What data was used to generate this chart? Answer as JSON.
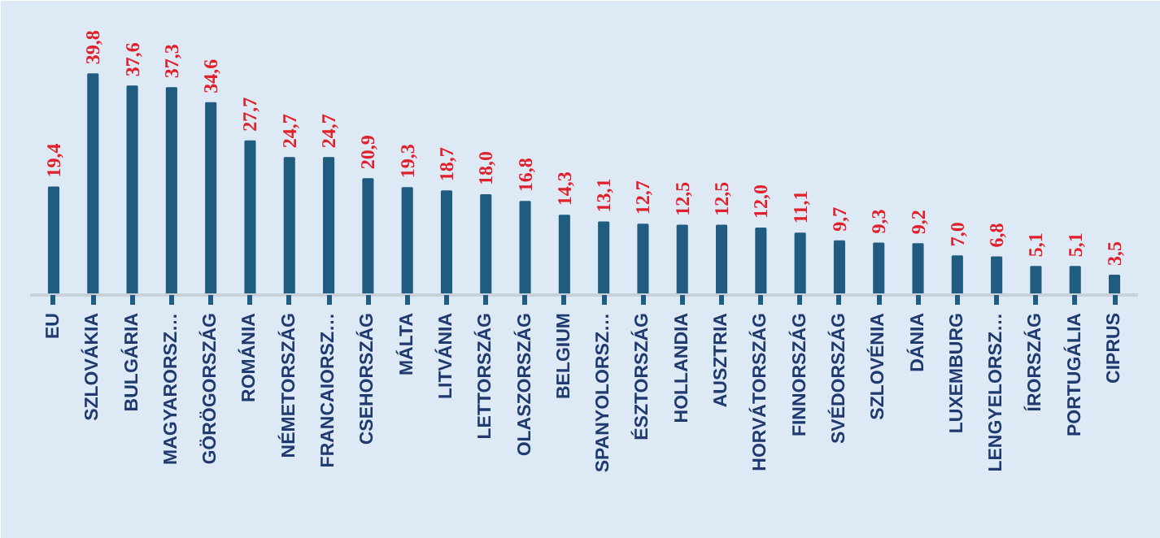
{
  "chart_data": {
    "type": "bar",
    "categories": [
      "EU",
      "SZLOVÁKIA",
      "BULGÁRIA",
      "MAGYARORSZ…",
      "GÖRÖGORSZÁG",
      "ROMÁNIA",
      "NÉMETORSZÁG",
      "FRANCAIORSZ…",
      "CSEHORSZÁG",
      "MÁLTA",
      "LITVÁNIA",
      "LETTORSZÁG",
      "OLASZORSZÁG",
      "BELGIUM",
      "SPANYOLORSZ…",
      "ÉSZTORSZÁG",
      "HOLLANDIA",
      "AUSZTRIA",
      "HORVÁTORSZÁG",
      "FINNORSZÁG",
      "SVÉDORSZÁG",
      "SZLOVÉNIA",
      "DÁNIA",
      "LUXEMBURG",
      "LENGYELORSZ…",
      "ÍRORSZÁG",
      "PORTUGÁLIA",
      "CIPRUS"
    ],
    "values": [
      19.4,
      39.8,
      37.6,
      37.3,
      34.6,
      27.7,
      24.7,
      24.7,
      20.9,
      19.3,
      18.7,
      18.0,
      16.8,
      14.3,
      13.1,
      12.7,
      12.5,
      12.5,
      12.0,
      11.1,
      9.7,
      9.3,
      9.2,
      7.0,
      6.8,
      5.1,
      5.1,
      3.5
    ],
    "value_labels": [
      "19,4",
      "39,8",
      "37,6",
      "37,3",
      "34,6",
      "27,7",
      "24,7",
      "24,7",
      "20,9",
      "19,3",
      "18,7",
      "18,0",
      "16,8",
      "14,3",
      "13,1",
      "12,7",
      "12,5",
      "12,5",
      "12,0",
      "11,1",
      "9,7",
      "9,3",
      "9,2",
      "7,0",
      "6,8",
      "5,1",
      "5,1",
      "3,5"
    ],
    "color": "#1f5c80",
    "ylim": [
      0,
      53
    ],
    "tick_labels": "x",
    "grid": false
  }
}
